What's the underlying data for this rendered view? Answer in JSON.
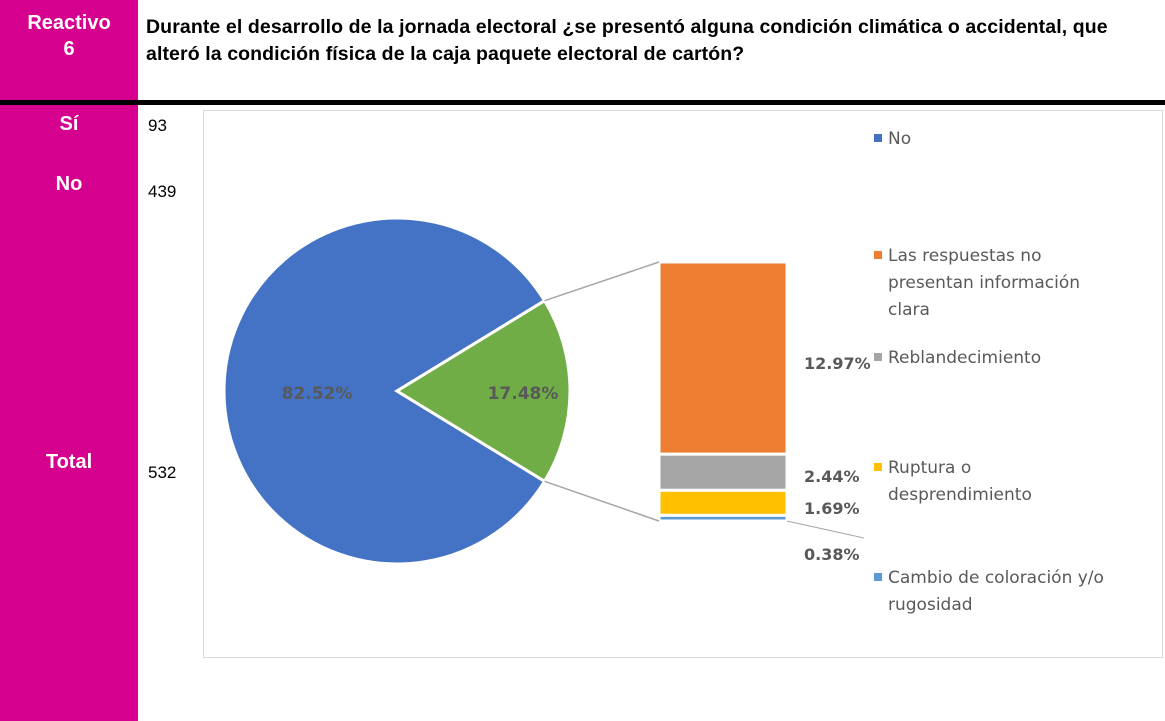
{
  "header": {
    "label_line1": "Reactivo",
    "label_line2": "6",
    "question": "Durante el desarrollo de la jornada electoral ¿se presentó alguna condición climática o accidental, que alteró la condición física de la caja paquete electoral de cartón?"
  },
  "rows": [
    {
      "label": "Sí",
      "count": "93"
    },
    {
      "label": "No",
      "count": "439"
    },
    {
      "label": "Total",
      "count": "532"
    }
  ],
  "colors": {
    "brand_pink": "#d6008f",
    "no": "#4472c4",
    "si_slice": "#70ad47",
    "respuestas": "#ed7d31",
    "reblandecimiento": "#a5a5a5",
    "ruptura": "#ffc000",
    "cambio": "#5b9bd5"
  },
  "chart_data": {
    "type": "pie",
    "subtype": "bar-of-pie",
    "pie": [
      {
        "name": "No",
        "value": 82.52,
        "label": "82.52%",
        "color": "#4472c4"
      },
      {
        "name": "",
        "value": 17.48,
        "label": "17.48%",
        "color": "#70ad47"
      }
    ],
    "breakdown": [
      {
        "name": "Las respuestas no presentan información clara",
        "value": 12.97,
        "label": "12.97%",
        "color": "#ed7d31"
      },
      {
        "name": "Reblandecimiento",
        "value": 2.44,
        "label": "2.44%",
        "color": "#a5a5a5"
      },
      {
        "name": "Ruptura o desprendimiento",
        "value": 1.69,
        "label": "1.69%",
        "color": "#ffc000"
      },
      {
        "name": "Cambio de coloración y/o rugosidad",
        "value": 0.38,
        "label": "0.38%",
        "color": "#5b9bd5"
      }
    ],
    "legend": [
      {
        "lines": [
          "No"
        ],
        "color": "#4472c4"
      },
      {
        "lines": [
          "Las respuestas no",
          "presentan información",
          "clara"
        ],
        "color": "#ed7d31"
      },
      {
        "lines": [
          "Reblandecimiento"
        ],
        "color": "#a5a5a5"
      },
      {
        "lines": [
          "Ruptura o",
          "desprendimiento"
        ],
        "color": "#ffc000"
      },
      {
        "lines": [
          "Cambio de coloración y/o",
          "rugosidad"
        ],
        "color": "#5b9bd5"
      }
    ],
    "legend_position": "right"
  }
}
